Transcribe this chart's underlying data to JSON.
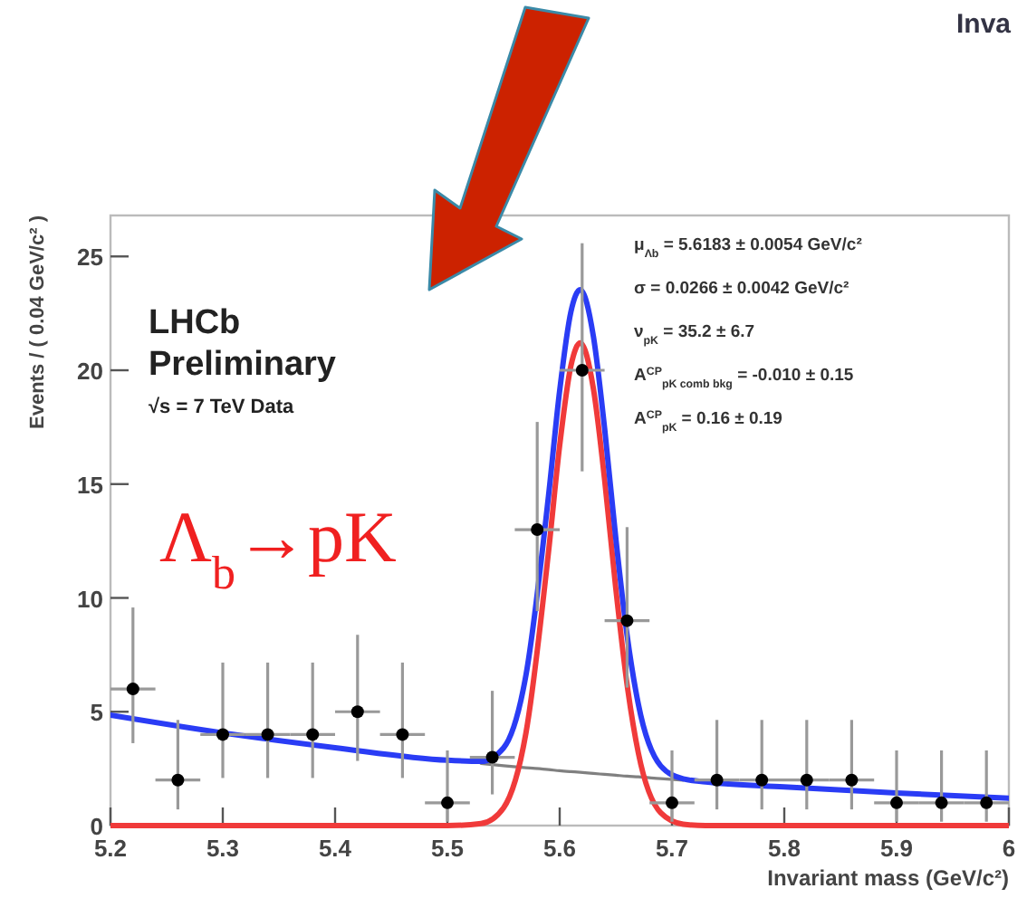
{
  "chart_data": {
    "type": "scatter",
    "xlabel": "Invariant mass (GeV/c²)",
    "ylabel": "Events / ( 0.04 GeV/c² )",
    "xlim": [
      5.2,
      6.0
    ],
    "ylim": [
      0,
      26.8
    ],
    "xticks": [
      5.2,
      5.3,
      5.4,
      5.5,
      5.6,
      5.7,
      5.8,
      5.9,
      6
    ],
    "yticks": [
      0,
      5,
      10,
      15,
      20,
      25
    ],
    "grid": false,
    "annotations": [
      "LHCb",
      "Preliminary",
      "√s = 7 TeV Data",
      "Λ$_{b}$→pK",
      "μ$_{Λb}$ = 5.6183 ± 0.0054 GeV/c²",
      "σ = 0.0266 ± 0.0042 GeV/c²",
      "ν$_{pK}$ = 35.2 ± 6.7",
      "A$^{CP}$$_{pK comb bkg}$ = -0.010 ± 0.15",
      "A$^{CP}$$_{pK}$ = 0.16 ± 0.19",
      "Inva"
    ],
    "series": [
      {
        "type": "line",
        "color": "#808080",
        "line_style": "solid",
        "x": [
          5.53,
          5.55,
          5.57,
          5.59,
          5.6,
          5.61,
          5.6183,
          5.63,
          5.64,
          5.65,
          5.66,
          5.67,
          5.69,
          5.71
        ],
        "values": [
          2.73,
          2.63,
          2.54,
          2.46,
          2.41,
          2.37,
          2.34,
          2.29,
          2.25,
          2.21,
          2.17,
          2.14,
          2.06,
          1.99
        ]
      },
      {
        "type": "line",
        "color": "#f03a3a",
        "line_style": "solid",
        "x": [
          5.2,
          5.5,
          5.53,
          5.55,
          5.57,
          5.59,
          5.6,
          5.61,
          5.6183,
          5.63,
          5.64,
          5.65,
          5.66,
          5.67,
          5.69,
          5.71,
          5.73,
          6.0
        ],
        "values": [
          0,
          0,
          0.09,
          0.78,
          4.08,
          12.0,
          16.7,
          20.2,
          21.2,
          19.2,
          15.2,
          10.4,
          6.2,
          3.2,
          0.56,
          0.06,
          0,
          0
        ]
      },
      {
        "type": "line",
        "color": "#2a3cf5",
        "line_style": "solid",
        "x": [
          5.2,
          5.3,
          5.4,
          5.5,
          5.53,
          5.55,
          5.57,
          5.59,
          5.6,
          5.61,
          5.6183,
          5.63,
          5.64,
          5.65,
          5.66,
          5.67,
          5.69,
          5.71,
          5.73,
          5.8,
          5.9,
          6.0
        ],
        "values": [
          4.85,
          4.07,
          3.42,
          2.87,
          2.82,
          3.41,
          6.62,
          14.46,
          19.11,
          22.57,
          23.54,
          21.49,
          17.45,
          12.61,
          8.37,
          5.34,
          2.62,
          2.05,
          1.92,
          1.7,
          1.43,
          1.2
        ]
      },
      {
        "color": "#000000",
        "marker": "circle",
        "x": [
          5.22,
          5.26,
          5.3,
          5.34,
          5.38,
          5.42,
          5.46,
          5.5,
          5.54,
          5.58,
          5.62,
          5.66,
          5.7,
          5.74,
          5.78,
          5.82,
          5.86,
          5.9,
          5.94,
          5.98
        ],
        "values": [
          6,
          2,
          4,
          4,
          4,
          5,
          4,
          1,
          3,
          13,
          20,
          9,
          1,
          2,
          2,
          2,
          2,
          1,
          1,
          1
        ],
        "errors": [
          [
            3.62,
            9.58
          ],
          [
            0.71,
            4.64
          ],
          [
            2.09,
            7.16
          ],
          [
            2.09,
            7.16
          ],
          [
            2.09,
            7.16
          ],
          [
            2.84,
            8.38
          ],
          [
            2.09,
            7.16
          ],
          [
            0.17,
            3.3
          ],
          [
            1.37,
            5.92
          ],
          [
            9.42,
            17.73
          ],
          [
            15.56,
            25.58
          ],
          [
            6.06,
            13.11
          ],
          [
            0.17,
            3.3
          ],
          [
            0.71,
            4.64
          ],
          [
            0.71,
            4.64
          ],
          [
            0.71,
            4.64
          ],
          [
            0.71,
            4.64
          ],
          [
            0.17,
            3.3
          ],
          [
            0.17,
            3.3
          ],
          [
            0.17,
            3.3
          ]
        ],
        "xerrors": [
          0.02,
          0.02,
          0.02,
          0.02,
          0.02,
          0.02,
          0.02,
          0.02,
          0.02,
          0.02,
          0.02,
          0.02,
          0.02,
          0.02,
          0.02,
          0.02,
          0.02,
          0.02,
          0.02,
          0.02
        ]
      }
    ]
  }
}
